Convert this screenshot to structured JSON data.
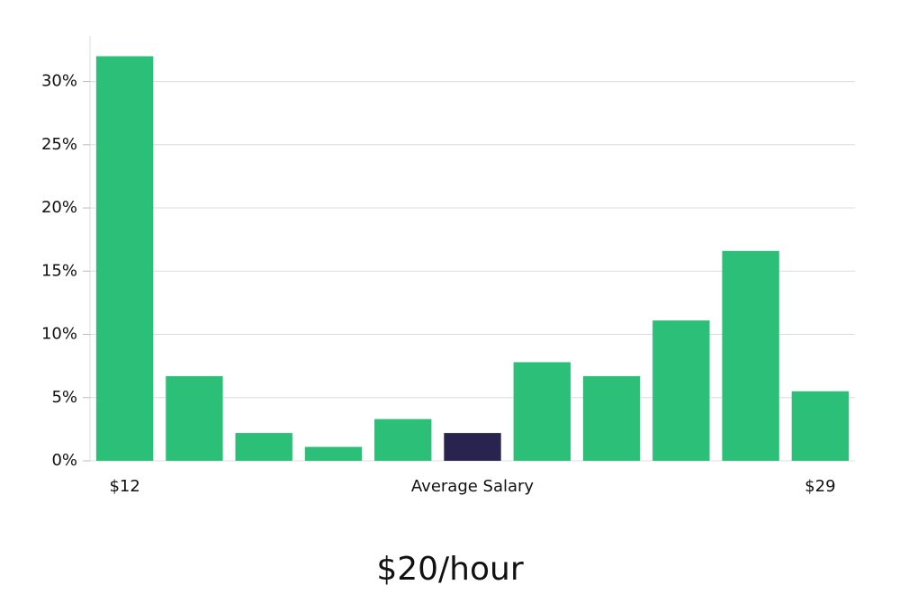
{
  "chart_data": {
    "type": "bar",
    "subtitle": "$20/hour",
    "categories": [
      "$12",
      null,
      null,
      null,
      null,
      "Average Salary",
      null,
      null,
      null,
      null,
      "$29"
    ],
    "values": [
      32.0,
      6.7,
      2.2,
      1.1,
      3.3,
      2.2,
      7.8,
      6.7,
      11.1,
      16.6,
      5.5
    ],
    "colors": [
      "#2bbf78",
      "#2bbf78",
      "#2bbf78",
      "#2bbf78",
      "#2bbf78",
      "#29244f",
      "#2bbf78",
      "#2bbf78",
      "#2bbf78",
      "#2bbf78",
      "#2bbf78"
    ],
    "ylim": [
      0,
      33.6
    ],
    "yticks": [
      {
        "value": 0,
        "label": "0%"
      },
      {
        "value": 5,
        "label": "5%"
      },
      {
        "value": 10,
        "label": "10%"
      },
      {
        "value": 15,
        "label": "15%"
      },
      {
        "value": 20,
        "label": "20%"
      },
      {
        "value": 25,
        "label": "25%"
      },
      {
        "value": 30,
        "label": "30%"
      }
    ],
    "grid": true
  }
}
